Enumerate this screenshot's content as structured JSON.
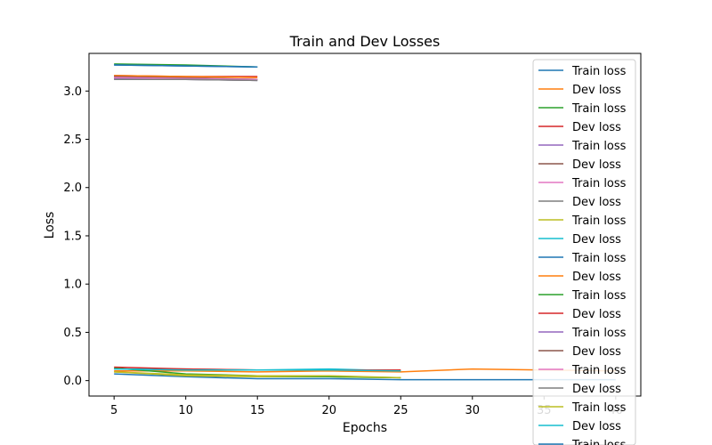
{
  "chart_data": {
    "type": "line",
    "title": "Train and Dev Losses",
    "xlabel": "Epochs",
    "ylabel": "Loss",
    "xlim": [
      3.25,
      41.75
    ],
    "ylim": [
      -0.16,
      3.39
    ],
    "xticks": [
      5,
      10,
      15,
      20,
      25,
      30,
      35,
      40
    ],
    "yticks": [
      0.0,
      0.5,
      1.0,
      1.5,
      2.0,
      2.5,
      3.0
    ],
    "ytick_labels": [
      "0.0",
      "0.5",
      "1.0",
      "1.5",
      "2.0",
      "2.5",
      "3.0"
    ],
    "grid": false,
    "legend_position": "top-right",
    "series": [
      {
        "name": "Train loss",
        "color": "#1f77b4",
        "x": [
          5,
          10,
          15,
          20,
          25,
          30,
          35,
          40
        ],
        "y": [
          0.07,
          0.04,
          0.02,
          0.02,
          0.01,
          0.01,
          0.01,
          0.01
        ]
      },
      {
        "name": "Dev loss",
        "color": "#ff7f0e",
        "x": [
          5,
          10,
          15,
          20,
          25,
          30,
          35,
          40
        ],
        "y": [
          0.1,
          0.1,
          0.09,
          0.1,
          0.09,
          0.12,
          0.11,
          0.1
        ]
      },
      {
        "name": "Train loss",
        "color": "#2ca02c",
        "x": [
          5,
          10,
          15
        ],
        "y": [
          3.28,
          3.27,
          3.25
        ]
      },
      {
        "name": "Dev loss",
        "color": "#d62728",
        "x": [
          5,
          10,
          15
        ],
        "y": [
          3.16,
          3.15,
          3.15
        ]
      },
      {
        "name": "Train loss",
        "color": "#9467bd",
        "x": [
          5,
          10,
          15
        ],
        "y": [
          3.12,
          3.12,
          3.11
        ]
      },
      {
        "name": "Dev loss",
        "color": "#8c564b",
        "x": [
          5,
          10,
          15
        ],
        "y": [
          3.15,
          3.14,
          3.12
        ]
      },
      {
        "name": "Train loss",
        "color": "#e377c2",
        "x": [
          5,
          10,
          15
        ],
        "y": [
          3.13,
          3.13,
          3.12
        ]
      },
      {
        "name": "Dev loss",
        "color": "#7f7f7f",
        "x": [
          5,
          10,
          15
        ],
        "y": [
          3.13,
          3.12,
          3.11
        ]
      },
      {
        "name": "Train loss",
        "color": "#bcbd22",
        "x": [
          5,
          10,
          15,
          20,
          25
        ],
        "y": [
          0.09,
          0.05,
          0.04,
          0.04,
          0.03
        ]
      },
      {
        "name": "Dev loss",
        "color": "#17becf",
        "x": [
          5,
          10,
          15,
          20,
          25
        ],
        "y": [
          0.12,
          0.12,
          0.11,
          0.12,
          0.1
        ]
      },
      {
        "name": "Train loss",
        "color": "#1f77b4",
        "x": [
          5,
          10,
          15
        ],
        "y": [
          3.27,
          3.26,
          3.25
        ]
      },
      {
        "name": "Dev loss",
        "color": "#ff7f0e",
        "x": [
          5,
          10,
          15
        ],
        "y": [
          3.16,
          3.15,
          3.14
        ]
      },
      {
        "name": "Train loss",
        "color": "#2ca02c",
        "x": [
          5,
          10,
          15,
          20,
          25
        ],
        "y": [
          0.13,
          0.07,
          0.05,
          0.04,
          0.03
        ]
      },
      {
        "name": "Dev loss",
        "color": "#d62728",
        "x": [
          5,
          10,
          15,
          20,
          25
        ],
        "y": [
          0.14,
          0.12,
          0.11,
          0.11,
          0.11
        ]
      },
      {
        "name": "Train loss",
        "color": "#9467bd",
        "x": [
          5,
          10,
          15
        ],
        "y": [
          3.13,
          3.12,
          3.12
        ]
      },
      {
        "name": "Dev loss",
        "color": "#8c564b",
        "x": [
          5,
          10,
          15
        ],
        "y": [
          3.15,
          3.13,
          3.12
        ]
      },
      {
        "name": "Train loss",
        "color": "#e377c2",
        "x": [
          5,
          10,
          15
        ],
        "y": [
          3.14,
          3.13,
          3.12
        ]
      },
      {
        "name": "Dev loss",
        "color": "#7f7f7f",
        "x": [
          5,
          10,
          15
        ],
        "y": [
          3.12,
          3.12,
          3.11
        ]
      },
      {
        "name": "Train loss",
        "color": "#bcbd22",
        "x": [
          5,
          10,
          15,
          20,
          25
        ],
        "y": [
          0.09,
          0.06,
          0.05,
          0.05,
          0.03
        ]
      },
      {
        "name": "Dev loss",
        "color": "#17becf",
        "x": [
          5,
          10,
          15,
          20,
          25
        ],
        "y": [
          0.12,
          0.11,
          0.11,
          0.11,
          0.1
        ]
      },
      {
        "name": "Train loss",
        "color": "#1f77b4",
        "x": [
          5,
          10,
          15
        ],
        "y": [
          3.27,
          3.26,
          3.25
        ]
      }
    ]
  }
}
